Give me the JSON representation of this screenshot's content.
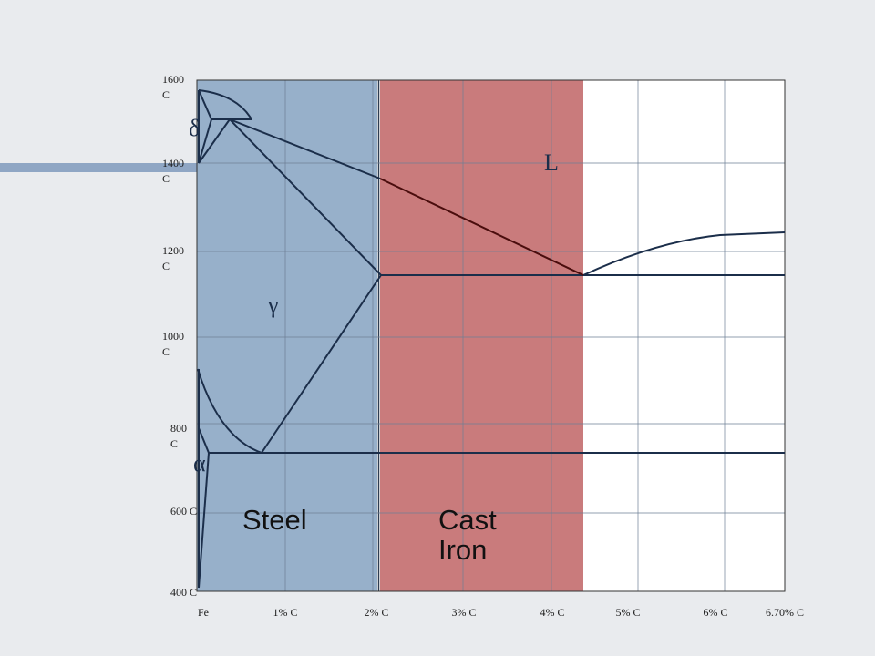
{
  "y_axis_labels": [
    "1600\nC",
    "1400\nC",
    "1200\nC",
    "1000\nC",
    "800\nC",
    "600 C",
    "400 C"
  ],
  "x_axis_labels": [
    "Fe",
    "1% C",
    "2% C",
    "3% C",
    "4% C",
    "5% C",
    "6% C",
    "6.70% C"
  ],
  "phase_labels": {
    "delta": "δ",
    "liquid": "L",
    "gamma": "γ",
    "alpha": "α"
  },
  "regions": {
    "steel": "Steel",
    "cast_iron": "Cast\nIron"
  },
  "colors": {
    "steel": "#97b0ca",
    "cast_iron": "#c97b7c",
    "lines": "#1b2e4a",
    "liquidus_on_iron": "#4a0d0d"
  }
}
